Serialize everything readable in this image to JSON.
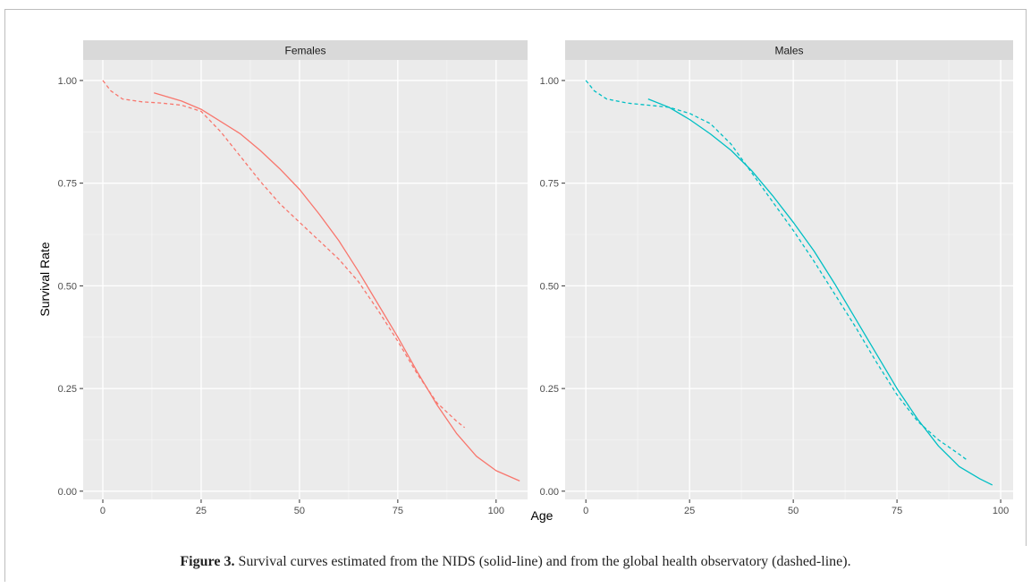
{
  "caption": {
    "label": "Figure 3.",
    "text": " Survival curves estimated from the NIDS (solid-line) and from the global health observatory (dashed-line)."
  },
  "chart_data": {
    "type": "line",
    "xlabel": "Age",
    "ylabel": "Survival Rate",
    "grid": true,
    "legend": "none",
    "line_styles": {
      "solid": "NIDS",
      "dashed": "global health observatory"
    },
    "panels": [
      {
        "title": "Females",
        "color": "#F8766D",
        "xlim": [
          -5,
          108
        ],
        "ylim": [
          -0.02,
          1.05
        ],
        "x_ticks": [
          0,
          25,
          50,
          75,
          100
        ],
        "y_ticks": [
          "0.00",
          "0.25",
          "0.50",
          "0.75",
          "1.00"
        ],
        "series": [
          {
            "style": "solid",
            "x": [
              13,
              20,
              25,
              30,
              35,
              40,
              45,
              50,
              55,
              60,
              65,
              70,
              75,
              80,
              85,
              90,
              95,
              100,
              106
            ],
            "y": [
              0.97,
              0.95,
              0.93,
              0.9,
              0.87,
              0.83,
              0.785,
              0.735,
              0.675,
              0.61,
              0.535,
              0.455,
              0.375,
              0.29,
              0.21,
              0.14,
              0.085,
              0.05,
              0.025
            ]
          },
          {
            "style": "dashed",
            "x": [
              0,
              2,
              5,
              10,
              15,
              20,
              25,
              30,
              35,
              40,
              45,
              50,
              55,
              60,
              65,
              70,
              75,
              80,
              85,
              90,
              92
            ],
            "y": [
              1.0,
              0.975,
              0.955,
              0.948,
              0.945,
              0.94,
              0.925,
              0.875,
              0.815,
              0.755,
              0.7,
              0.655,
              0.61,
              0.565,
              0.51,
              0.44,
              0.365,
              0.285,
              0.215,
              0.17,
              0.155
            ]
          }
        ]
      },
      {
        "title": "Males",
        "color": "#00BFC4",
        "xlim": [
          -5,
          103
        ],
        "ylim": [
          -0.02,
          1.05
        ],
        "x_ticks": [
          0,
          25,
          50,
          75,
          100
        ],
        "y_ticks": [
          "0.00",
          "0.25",
          "0.50",
          "0.75",
          "1.00"
        ],
        "series": [
          {
            "style": "solid",
            "x": [
              15,
              20,
              25,
              30,
              35,
              40,
              45,
              50,
              55,
              60,
              65,
              70,
              75,
              80,
              85,
              90,
              95,
              98
            ],
            "y": [
              0.955,
              0.935,
              0.905,
              0.87,
              0.83,
              0.78,
              0.72,
              0.655,
              0.585,
              0.505,
              0.42,
              0.335,
              0.25,
              0.175,
              0.11,
              0.06,
              0.03,
              0.015
            ]
          },
          {
            "style": "dashed",
            "x": [
              0,
              2,
              5,
              10,
              15,
              20,
              25,
              30,
              35,
              40,
              45,
              50,
              55,
              60,
              65,
              70,
              75,
              80,
              85,
              90,
              92
            ],
            "y": [
              1.0,
              0.975,
              0.955,
              0.945,
              0.94,
              0.935,
              0.92,
              0.895,
              0.845,
              0.775,
              0.705,
              0.635,
              0.56,
              0.48,
              0.4,
              0.315,
              0.235,
              0.17,
              0.125,
              0.09,
              0.075
            ]
          }
        ]
      }
    ]
  }
}
